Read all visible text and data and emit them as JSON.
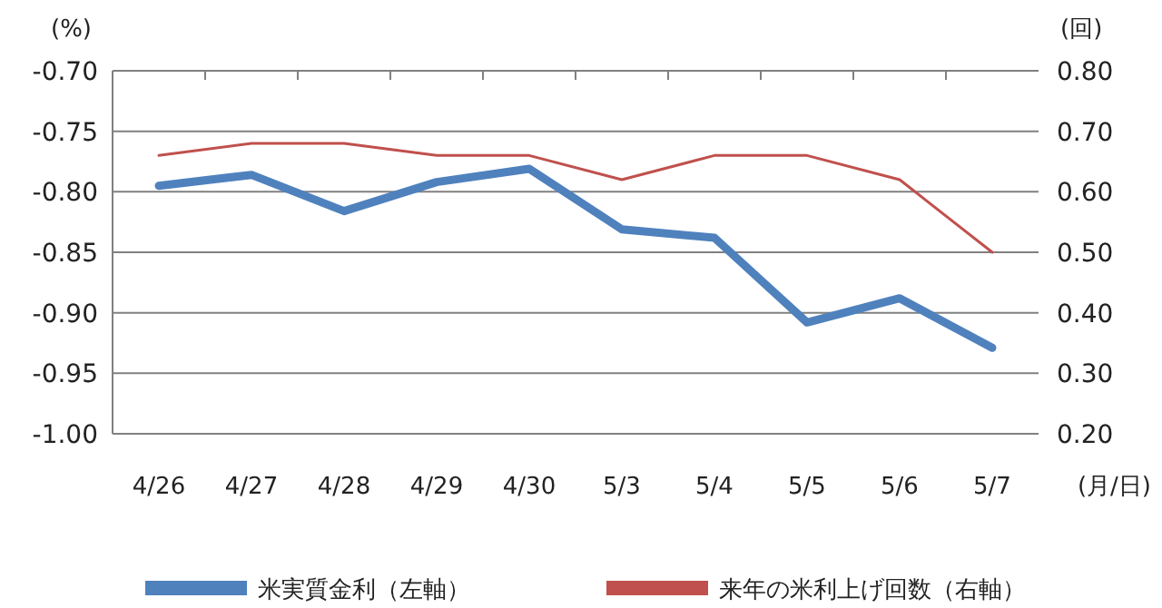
{
  "chart_data": {
    "type": "line",
    "ylabel": "(%)",
    "y2label": "(回)",
    "xlabel": "(月/日)",
    "categories": [
      "4/26",
      "4/27",
      "4/28",
      "4/29",
      "4/30",
      "5/3",
      "5/4",
      "5/5",
      "5/6",
      "5/7"
    ],
    "series": [
      {
        "name": "米実質金利（左軸）",
        "color": "#4f81bd",
        "values": [
          -0.795,
          -0.786,
          -0.816,
          -0.792,
          -0.781,
          -0.831,
          -0.838,
          -0.908,
          -0.888,
          -0.929
        ]
      },
      {
        "name": "来年の米利上げ回数（右軸）",
        "color": "#c0504d",
        "axis": "y2",
        "values": [
          0.66,
          0.68,
          0.68,
          0.66,
          0.66,
          0.62,
          0.66,
          0.66,
          0.62,
          0.5
        ]
      }
    ],
    "ylim": [
      -1.0,
      -0.7
    ],
    "yticks": [
      {
        "value": -1.0,
        "label": "-1.00"
      },
      {
        "value": -0.95,
        "label": "-0.95"
      },
      {
        "value": -0.9,
        "label": "-0.90"
      },
      {
        "value": -0.85,
        "label": "-0.85"
      },
      {
        "value": -0.8,
        "label": "-0.80"
      },
      {
        "value": -0.75,
        "label": "-0.75"
      },
      {
        "value": -0.7,
        "label": "-0.70"
      }
    ],
    "y2lim": [
      0.2,
      0.8
    ],
    "y2ticks": [
      {
        "value": 0.2,
        "label": "0.20"
      },
      {
        "value": 0.3,
        "label": "0.30"
      },
      {
        "value": 0.4,
        "label": "0.40"
      },
      {
        "value": 0.5,
        "label": "0.50"
      },
      {
        "value": 0.6,
        "label": "0.60"
      },
      {
        "value": 0.7,
        "label": "0.70"
      },
      {
        "value": 0.8,
        "label": "0.80"
      }
    ],
    "grid": "y",
    "legend": "bottom",
    "marker": "none",
    "line_style": "solid"
  }
}
